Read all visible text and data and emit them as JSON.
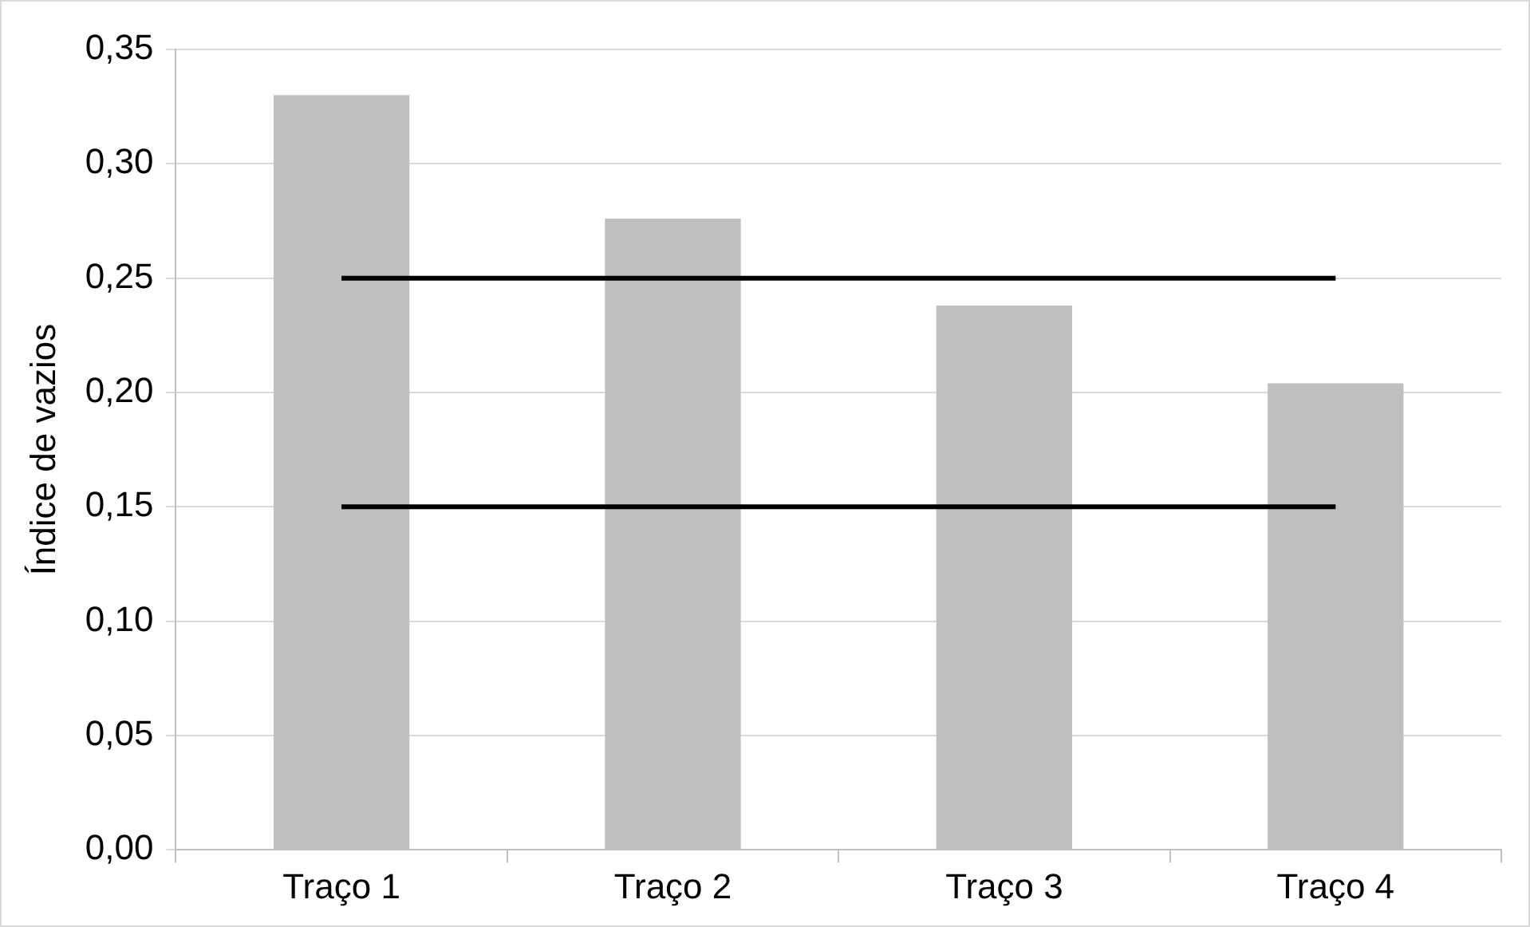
{
  "chart_data": {
    "type": "bar",
    "categories": [
      "Traço 1",
      "Traço 2",
      "Traço 3",
      "Traço 4"
    ],
    "series": [
      {
        "color": "#bfbfbf",
        "values": [
          0.33,
          0.276,
          0.238,
          0.204
        ]
      },
      {
        "type": "line",
        "color": "#000000",
        "values": [
          0.25,
          0.25,
          0.25,
          0.25
        ]
      },
      {
        "type": "line",
        "color": "#000000",
        "values": [
          0.15,
          0.15,
          0.15,
          0.15
        ]
      }
    ],
    "ylabel": "Índice de vazios",
    "ylim": [
      0,
      0.35
    ],
    "yticks": [
      {
        "value": 0,
        "label": "0,00"
      },
      {
        "value": 0.05,
        "label": "0,05"
      },
      {
        "value": 0.1,
        "label": "0,10"
      },
      {
        "value": 0.15,
        "label": "0,15"
      },
      {
        "value": 0.2,
        "label": "0,20"
      },
      {
        "value": 0.25,
        "label": "0,25"
      },
      {
        "value": 0.3,
        "label": "0,30"
      },
      {
        "value": 0.35,
        "label": "0,35"
      }
    ],
    "grid": "y",
    "legend": false,
    "marker": "none",
    "line_style": "solid"
  }
}
